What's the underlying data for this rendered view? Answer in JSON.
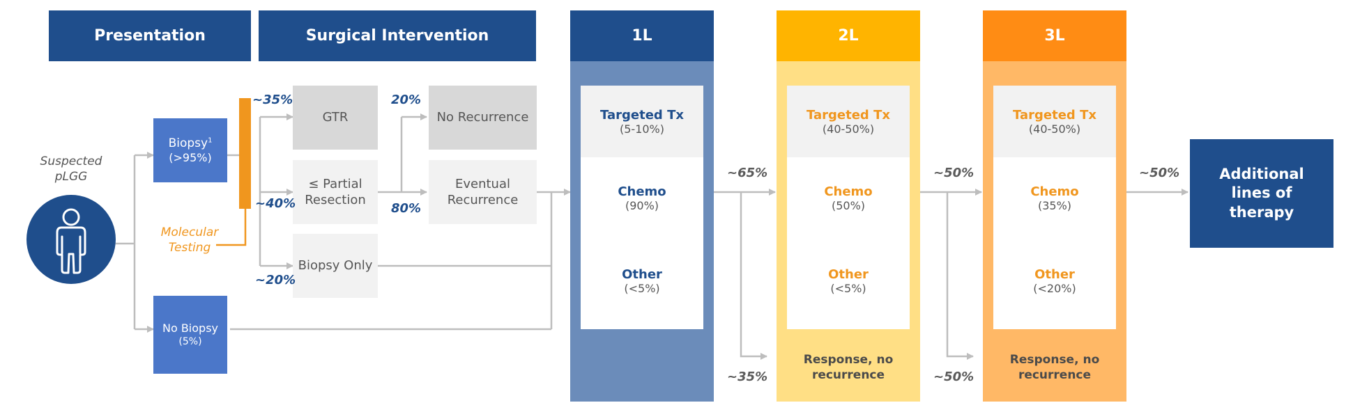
{
  "headers": {
    "presentation": "Presentation",
    "surgical": "Surgical Intervention",
    "l1": "1L",
    "l2": "2L",
    "l3": "3L"
  },
  "patient": {
    "label": "Suspected pLGG",
    "icon": "person-icon"
  },
  "biopsy": {
    "label": "Biopsy",
    "sup": "1",
    "pct": "(>95%)"
  },
  "no_biopsy": {
    "label": "No Biopsy",
    "pct": "(5%)"
  },
  "molecular": "Molecular Testing",
  "surgery": {
    "gtr": "GTR",
    "partial": "≤ Partial Resection",
    "biopsy_only": "Biopsy Only",
    "pct_gtr": "~35%",
    "pct_partial": "~40%",
    "pct_biopsy_only": "~20%"
  },
  "outcome": {
    "no_recurrence": "No Recurrence",
    "eventual": "Eventual Recurrence",
    "pct_no": "20%",
    "pct_eventual": "80%"
  },
  "l1": {
    "targeted": "Targeted Tx",
    "targeted_pct": "(5-10%)",
    "chemo": "Chemo",
    "chemo_pct": "(90%)",
    "other": "Other",
    "other_pct": "(<5%)"
  },
  "l2": {
    "targeted": "Targeted Tx",
    "targeted_pct": "(40-50%)",
    "chemo": "Chemo",
    "chemo_pct": "(50%)",
    "other": "Other",
    "other_pct": "(<5%)",
    "response": "Response, no recurrence"
  },
  "l3": {
    "targeted": "Targeted Tx",
    "targeted_pct": "(40-50%)",
    "chemo": "Chemo",
    "chemo_pct": "(35%)",
    "other": "Other",
    "other_pct": "(<20%)",
    "response": "Response, no recurrence"
  },
  "transitions": {
    "l1_to_l2": "~65%",
    "l1_response": "~35%",
    "l2_to_l3": "~50%",
    "l2_response": "~50%",
    "l3_to_additional": "~50%"
  },
  "additional": "Additional lines of therapy",
  "colors": {
    "navy": "#1f4e8c",
    "mid_blue": "#4b77c9",
    "l1_body": "#6b8cba",
    "l2_header": "#ffb400",
    "l2_body": "#ffdf85",
    "l3_header": "#ff8c14",
    "l3_body": "#ffb866",
    "orange_text": "#f0961e",
    "grey_box": "#d8d8d8",
    "light_box": "#f2f2f2"
  }
}
